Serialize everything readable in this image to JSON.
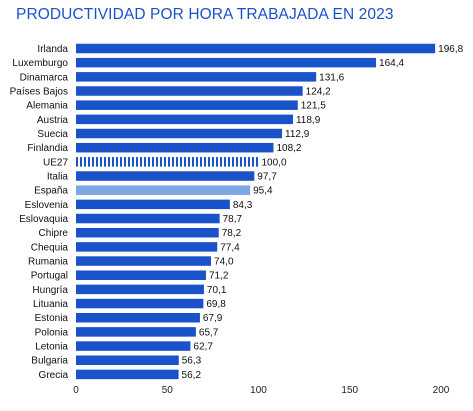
{
  "chart_data": {
    "type": "bar",
    "orientation": "horizontal",
    "title": "PRODUCTIVIDAD POR HORA TRABAJADA EN 2023",
    "xlabel": "",
    "ylabel": "",
    "xlim": [
      0,
      200
    ],
    "xticks": [
      0,
      50,
      100,
      150,
      200
    ],
    "grid": false,
    "categories": [
      "Irlanda",
      "Luxemburgo",
      "Dinamarca",
      "Países Bajos",
      "Alemania",
      "Austria",
      "Suecia",
      "Finlandia",
      "UE27",
      "Italia",
      "España",
      "Eslovenia",
      "Eslovaquia",
      "Chipre",
      "Chequia",
      "Rumania",
      "Portugal",
      "Hungría",
      "Lituania",
      "Estonia",
      "Polonia",
      "Letonia",
      "Bulgaria",
      "Grecia"
    ],
    "values": [
      196.8,
      164.4,
      131.6,
      124.2,
      121.5,
      118.9,
      112.9,
      108.2,
      100.0,
      97.7,
      95.4,
      84.3,
      78.7,
      78.2,
      77.4,
      74.0,
      71.2,
      70.1,
      69.8,
      67.9,
      65.7,
      62.7,
      56.3,
      56.2
    ],
    "value_labels": [
      "196,8",
      "164,4",
      "131,6",
      "124,2",
      "121,5",
      "118,9",
      "112,9",
      "108,2",
      "100,0",
      "97,7",
      "95,4",
      "84,3",
      "78,7",
      "78,2",
      "77,4",
      "74,0",
      "71,2",
      "70,1",
      "69,8",
      "67,9",
      "65,7",
      "62,7",
      "56,3",
      "56,2"
    ],
    "tick_labels": [
      "0",
      "50",
      "100",
      "150",
      "200"
    ],
    "highlights": {
      "UE27": {
        "style": "striped",
        "color": "#1a52c9"
      },
      "España": {
        "style": "solid",
        "color": "#7fa6e6"
      }
    },
    "colors": {
      "bar": "#1a52c9",
      "highlight": "#7fa6e6",
      "highlight_label": "#7fa6e6",
      "title": "#1a52c9"
    }
  }
}
